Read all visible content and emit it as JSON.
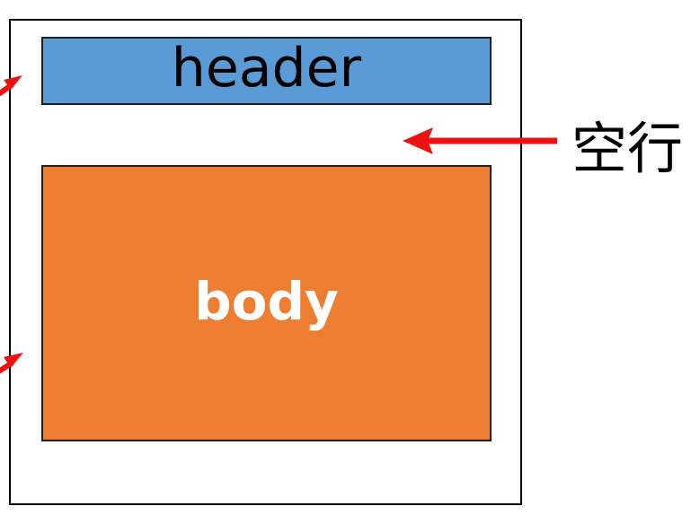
{
  "header": {
    "label": "header"
  },
  "body": {
    "label": "body"
  },
  "annotation": {
    "label": "空行"
  },
  "colors": {
    "header_fill": "#5b9bd5",
    "body_fill": "#ed7d31",
    "arrow": "#ee1111",
    "frame_border": "#000000"
  }
}
